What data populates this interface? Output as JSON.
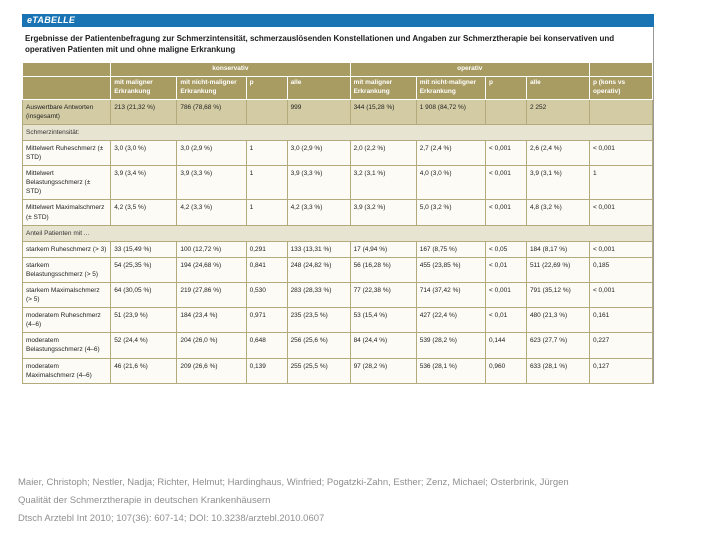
{
  "tab_label": "eTABELLE",
  "title": "Ergebnisse der Patientenbefragung zur Schmerzintensität, schmerzauslösenden Konstellationen und Angaben zur Schmerztherapie bei konservativen und operativen Patienten mit und ohne maligne Erkrankung",
  "colors": {
    "accent_blue": "#1a74b4",
    "header_olive": "#a89c62",
    "row_tint": "#d2cba3",
    "section_tint": "#e8e4d2",
    "grid_line": "#b3aa7e",
    "citation_gray": "#8f8f8f"
  },
  "table": {
    "groups": [
      {
        "label": "konservativ",
        "span": 4
      },
      {
        "label": "operativ",
        "span": 4
      }
    ],
    "columns": [
      "",
      "mit maligner Erkrankung",
      "mit nicht-maligner Erkrankung",
      "p",
      "alle",
      "mit maligner Erkrankung",
      "mit nicht-maligner Erkrankung",
      "p",
      "alle",
      "p (kons vs operativ)"
    ],
    "rows": [
      {
        "type": "data",
        "tint": true,
        "label": "Auswertbare Antworten (insgesamt)",
        "cells": [
          "213 (21,32 %)",
          "786 (78,68 %)",
          "",
          "999",
          "344 (15,28 %)",
          "1 908 (84,72 %)",
          "",
          "2 252",
          ""
        ]
      },
      {
        "type": "section",
        "label": "Schmerzintensität:"
      },
      {
        "type": "data",
        "label": "Mittelwert Ruheschmerz (± STD)",
        "cells": [
          "3,0 (3,0 %)",
          "3,0 (2,9 %)",
          "1",
          "3,0 (2,9 %)",
          "2,0 (2,2 %)",
          "2,7 (2,4 %)",
          "< 0,001",
          "2,6 (2,4 %)",
          "< 0,001"
        ]
      },
      {
        "type": "data",
        "label": "Mittelwert Belastungsschmerz (± STD)",
        "cells": [
          "3,9 (3,4 %)",
          "3,9 (3,3 %)",
          "1",
          "3,9 (3,3 %)",
          "3,2 (3,1 %)",
          "4,0 (3,0 %)",
          "< 0,001",
          "3,9 (3,1 %)",
          "1"
        ]
      },
      {
        "type": "data",
        "label": "Mittelwert Maximalschmerz (± STD)",
        "cells": [
          "4,2 (3,5 %)",
          "4,2 (3,3 %)",
          "1",
          "4,2 (3,3 %)",
          "3,9 (3,2 %)",
          "5,0 (3,2 %)",
          "< 0,001",
          "4,8 (3,2 %)",
          "< 0,001"
        ]
      },
      {
        "type": "section",
        "label": "Anteil Patienten mit ..."
      },
      {
        "type": "data",
        "label": "starkem Ruheschmerz (> 3)",
        "cells": [
          "33 (15,49 %)",
          "100 (12,72 %)",
          "0,291",
          "133 (13,31 %)",
          "17 (4,94 %)",
          "167 (8,75 %)",
          "< 0,05",
          "184 (8,17 %)",
          "< 0,001"
        ]
      },
      {
        "type": "data",
        "label": "starkem Belastungsschmerz (> 5)",
        "cells": [
          "54 (25,35 %)",
          "194 (24,68 %)",
          "0,841",
          "248 (24,82 %)",
          "56 (16,28 %)",
          "455 (23,85 %)",
          "< 0,01",
          "511 (22,69 %)",
          "0,185"
        ]
      },
      {
        "type": "data",
        "label": "starkem Maximalschmerz (> 5)",
        "cells": [
          "64 (30,05 %)",
          "219 (27,86 %)",
          "0,530",
          "283 (28,33 %)",
          "77 (22,38 %)",
          "714 (37,42 %)",
          "< 0,001",
          "791 (35,12 %)",
          "< 0,001"
        ]
      },
      {
        "type": "data",
        "label": "moderatem Ruheschmerz (4–6)",
        "cells": [
          "51 (23,9 %)",
          "184 (23,4 %)",
          "0,971",
          "235 (23,5 %)",
          "53 (15,4 %)",
          "427 (22,4 %)",
          "< 0,01",
          "480 (21,3 %)",
          "0,161"
        ]
      },
      {
        "type": "data",
        "label": "moderatem Belastungsschmerz (4–6)",
        "cells": [
          "52 (24,4 %)",
          "204 (26,0 %)",
          "0,648",
          "256 (25,6 %)",
          "84 (24,4 %)",
          "539 (28,2 %)",
          "0,144",
          "623 (27,7 %)",
          "0,227"
        ]
      },
      {
        "type": "data",
        "label": "moderatem Maximalschmerz (4–6)",
        "cells": [
          "46 (21,6 %)",
          "209 (26,6 %)",
          "0,139",
          "255 (25,5 %)",
          "97 (28,2 %)",
          "536 (28,1 %)",
          "0,960",
          "633 (28,1 %)",
          "0,127"
        ]
      }
    ]
  },
  "citation": {
    "authors": "Maier, Christoph; Nestler, Nadja; Richter, Helmut; Hardinghaus, Winfried; Pogatzki-Zahn, Esther; Zenz, Michael; Osterbrink, Jürgen",
    "title": "Qualität der Schmerztherapie in deutschen Krankenhäusern",
    "source": "Dtsch Arztebl Int 2010; 107(36): 607-14; DOI: 10.3238/arztebl.2010.0607"
  }
}
